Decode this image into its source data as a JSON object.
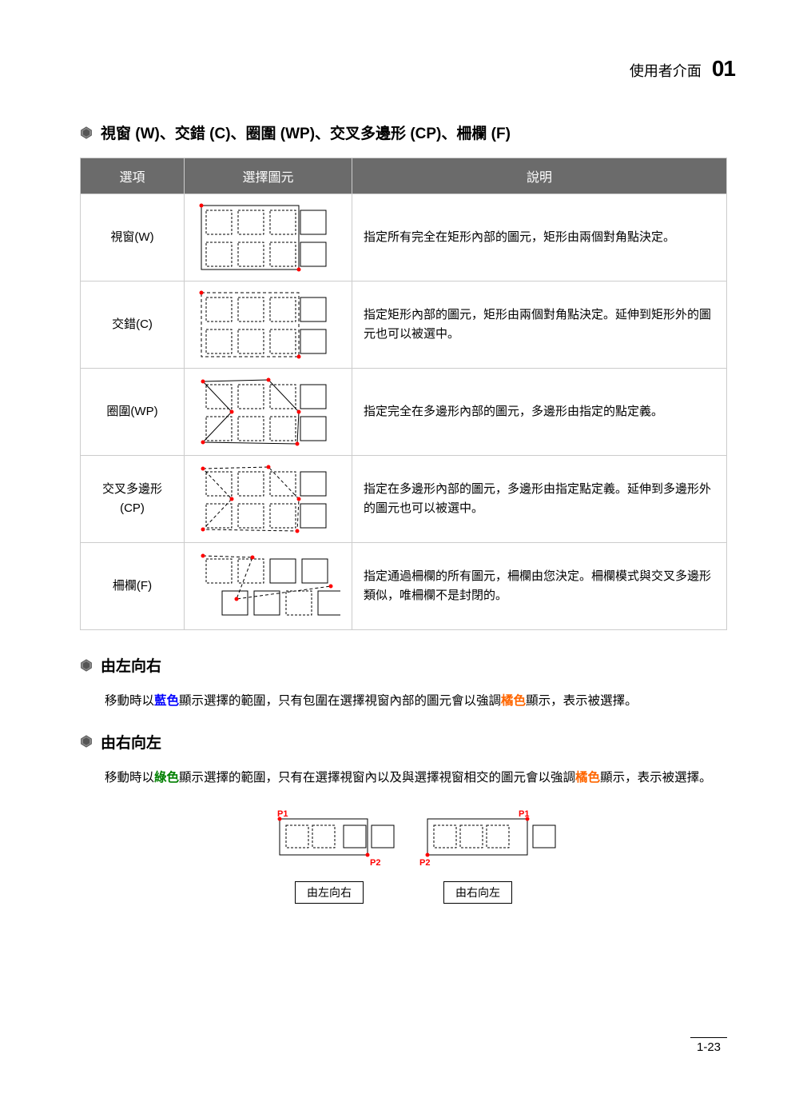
{
  "header": {
    "chapter_title": "使用者介面",
    "chapter_number": "01"
  },
  "section1": {
    "title": "視窗 (W)、交錯 (C)、圈圍 (WP)、交叉多邊形 (CP)、柵欄 (F)"
  },
  "table": {
    "headers": [
      "選項",
      "選擇圖元",
      "說明"
    ],
    "rows": [
      {
        "option": "視窗(W)",
        "desc": "指定所有完全在矩形內部的圖元，矩形由兩個對角點決定。",
        "diagram": "window"
      },
      {
        "option": "交錯(C)",
        "desc": "指定矩形內部的圖元，矩形由兩個對角點決定。延伸到矩形外的圖元也可以被選中。",
        "diagram": "crossing"
      },
      {
        "option": "圈圍(WP)",
        "desc": "指定完全在多邊形內部的圖元，多邊形由指定的點定義。",
        "diagram": "wpoly"
      },
      {
        "option": "交叉多邊形(CP)",
        "desc": "指定在多邊形內部的圖元，多邊形由指定點定義。延伸到多邊形外的圖元也可以被選中。",
        "diagram": "cpoly"
      },
      {
        "option": "柵欄(F)",
        "desc": "指定通過柵欄的所有圖元，柵欄由您決定。柵欄模式與交叉多邊形類似，唯柵欄不是封閉的。",
        "diagram": "fence"
      }
    ]
  },
  "section2": {
    "title": "由左向右",
    "para_parts": [
      "移動時以",
      "藍色",
      "顯示選擇的範圍，只有包圍在選擇視窗內部的圖元會以強調",
      "橘色",
      "顯示，表示被選擇。"
    ]
  },
  "section3": {
    "title": "由右向左",
    "para_parts": [
      "移動時以",
      "綠色",
      "顯示選擇的範圍，只有在選擇視窗內以及與選擇視窗相交的圖元會以強調",
      "橘色",
      "顯示，表示被選擇。"
    ]
  },
  "bottom_diagram": {
    "p1": "P1",
    "p2": "P2",
    "label_left": "由左向右",
    "label_right": "由右向左"
  },
  "page_number": "1-23",
  "colors": {
    "header_bg": "#6b6b6b",
    "border": "#cccccc",
    "blue": "#0000ff",
    "orange": "#ff6600",
    "green": "#008000",
    "red_point": "#ff0000"
  }
}
